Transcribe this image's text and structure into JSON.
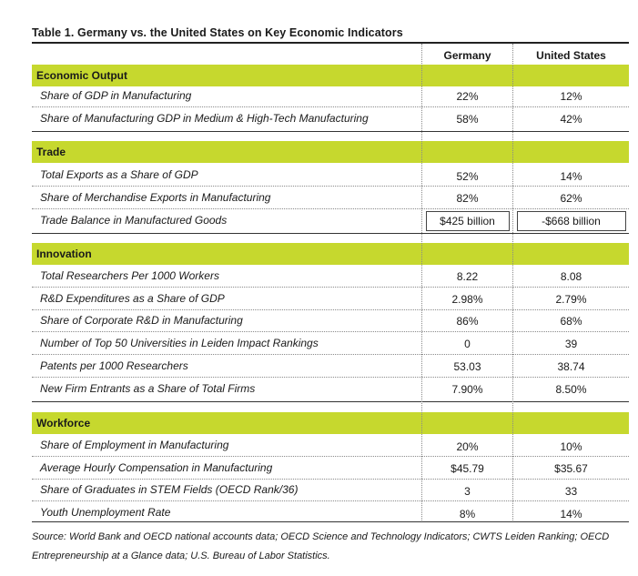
{
  "title": "Table 1. Germany vs. the United States on Key Economic Indicators",
  "columns": {
    "germany": "Germany",
    "united_states": "United States"
  },
  "sections": [
    {
      "name": "Economic Output",
      "rows": [
        {
          "label": "Share of GDP in Manufacturing",
          "germany": "22%",
          "us": "12%"
        },
        {
          "label": "Share of Manufacturing GDP in Medium & High-Tech Manufacturing",
          "germany": "58%",
          "us": "42%"
        }
      ]
    },
    {
      "name": "Trade",
      "rows": [
        {
          "label": "Total Exports as a Share of GDP",
          "germany": "52%",
          "us": "14%"
        },
        {
          "label": "Share of Merchandise Exports in Manufacturing",
          "germany": "82%",
          "us": "62%"
        },
        {
          "label": "Trade Balance in Manufactured Goods",
          "germany": "$425 billion",
          "us": "-$668 billion"
        }
      ]
    },
    {
      "name": "Innovation",
      "rows": [
        {
          "label": "Total Researchers Per 1000 Workers",
          "germany": "8.22",
          "us": "8.08"
        },
        {
          "label": "R&D Expenditures as a Share of GDP",
          "germany": "2.98%",
          "us": "2.79%"
        },
        {
          "label": "Share of Corporate R&D in Manufacturing",
          "germany": "86%",
          "us": "68%"
        },
        {
          "label": "Number of Top 50 Universities in Leiden Impact Rankings",
          "germany": "0",
          "us": "39"
        },
        {
          "label": "Patents per 1000 Researchers",
          "germany": "53.03",
          "us": "38.74"
        },
        {
          "label": "New Firm Entrants as a Share of Total Firms",
          "germany": "7.90%",
          "us": "8.50%"
        }
      ]
    },
    {
      "name": "Workforce",
      "rows": [
        {
          "label": "Share of Employment in Manufacturing",
          "germany": "20%",
          "us": "10%"
        },
        {
          "label": "Average Hourly Compensation in Manufacturing",
          "germany": "$45.79",
          "us": "$35.67"
        },
        {
          "label": "Share of Graduates in STEM Fields (OECD Rank/36)",
          "germany": "3",
          "us": "33"
        },
        {
          "label": "Youth Unemployment Rate",
          "germany": "8%",
          "us": "14%"
        }
      ]
    }
  ],
  "source": "Source: World Bank and OECD national accounts data; OECD Science and Technology Indicators; CWTS Leiden Ranking; OECD Entrepreneurship at a Glance data; U.S. Bureau of Labor Statistics.",
  "colors": {
    "band": "#c6d82e"
  }
}
